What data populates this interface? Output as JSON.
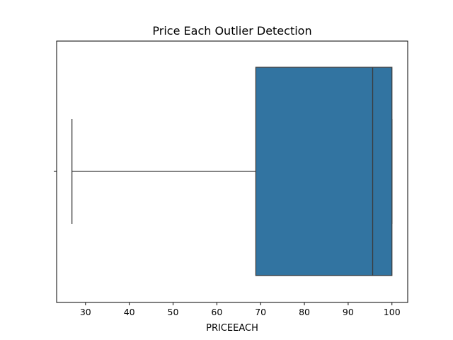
{
  "chart_data": {
    "type": "boxplot",
    "title": "Price Each Outlier Detection",
    "xlabel": "PRICEEACH",
    "ylabel": "",
    "xlim": [
      23.4,
      103.6
    ],
    "xticks": [
      30,
      40,
      50,
      60,
      70,
      80,
      90,
      100
    ],
    "grid": false,
    "legend": "none",
    "box": {
      "whisker_low": 26.9,
      "q1": 68.9,
      "median": 95.6,
      "q3": 100,
      "whisker_high": 100,
      "fill_color": "#3274a1",
      "line_color": "#3b3b3b"
    }
  }
}
